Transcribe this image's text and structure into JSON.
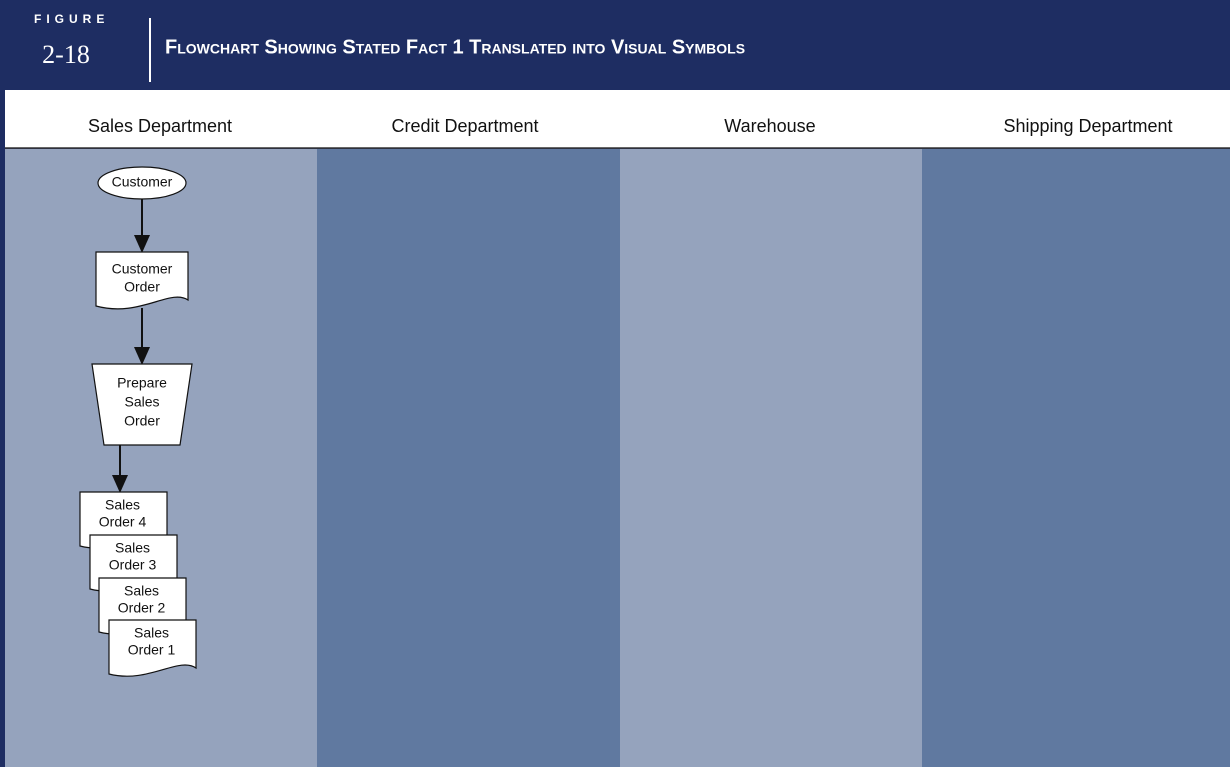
{
  "header": {
    "figure_label": "FIGURE",
    "figure_number": "2-18",
    "title": "Flowchart Showing Stated Fact 1 Translated into Visual Symbols"
  },
  "lanes": [
    "Sales Department",
    "Credit Department",
    "Warehouse",
    "Shipping Department"
  ],
  "nodes": [
    {
      "label": [
        "Customer"
      ]
    },
    {
      "label": [
        "Customer",
        "Order"
      ]
    },
    {
      "label": [
        "Prepare",
        "Sales",
        "Order"
      ]
    },
    {
      "label": [
        "Sales",
        "Order 4"
      ]
    },
    {
      "label": [
        "Sales",
        "Order 3"
      ]
    },
    {
      "label": [
        "Sales",
        "Order 2"
      ]
    },
    {
      "label": [
        "Sales",
        "Order 1"
      ]
    }
  ]
}
